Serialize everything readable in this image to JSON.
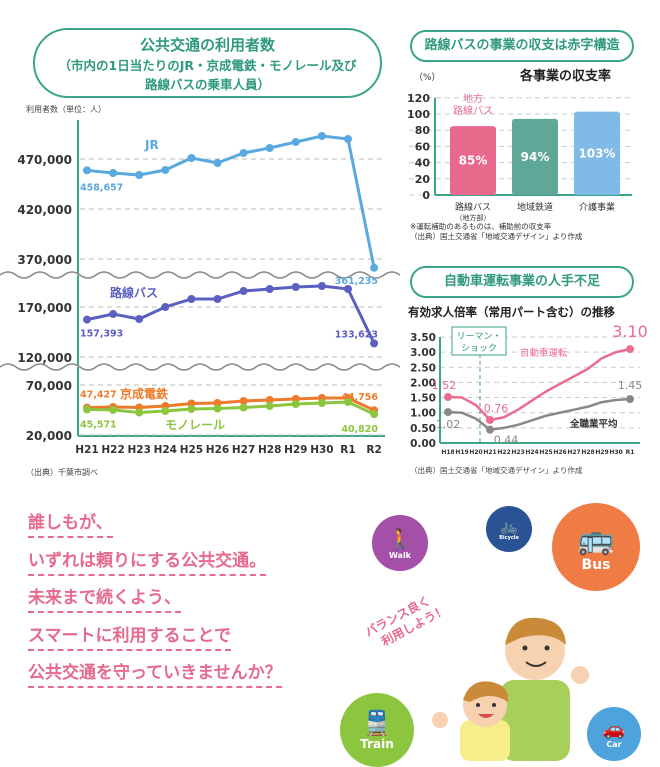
{
  "left_panel": {
    "title": "公共交通の利用者数",
    "subtitle1": "（市内の1日当たりのJR・京成電鉄・モノレール及び",
    "subtitle2": "路線バスの乗車人員）",
    "unit": "利用者数（単位：人）",
    "source": "（出典）千葉市調べ"
  },
  "bus_panel": {
    "heading": "路線バスの事業の収支は赤字構造",
    "source_note1": "※運転補助のあるものは、補助前の収支率",
    "source_note2": "（出典）国土交通省「地域交通デザイン」より作成"
  },
  "driver_panel": {
    "heading": "自動車運転事業の人手不足",
    "source": "（出典）国土交通省「地域交通デザイン」より作成",
    "lehman": "リーマン・ショック"
  },
  "chart_data": [
    {
      "type": "line",
      "title": "公共交通の利用者数",
      "ylabel": "利用者数（単位：人）",
      "categories": [
        "H21",
        "H22",
        "H23",
        "H24",
        "H25",
        "H26",
        "H27",
        "H28",
        "H29",
        "H30",
        "R1",
        "R2"
      ],
      "yticks": [
        "470,000",
        "420,000",
        "370,000",
        "170,000",
        "120,000",
        "70,000",
        "20,000"
      ],
      "series": [
        {
          "name": "JR",
          "color": "#5aa8e0",
          "values": [
            458657,
            456000,
            454000,
            459000,
            471000,
            466000,
            476000,
            481000,
            487000,
            493000,
            490000,
            361235
          ],
          "labels": [
            "458,657",
            "361,235"
          ]
        },
        {
          "name": "路線バス",
          "color": "#5a5fc0",
          "values": [
            157393,
            163000,
            158000,
            170000,
            178000,
            178000,
            186000,
            188000,
            190000,
            191000,
            188000,
            133623
          ],
          "labels": [
            "157,393",
            "133,623"
          ]
        },
        {
          "name": "京成電鉄",
          "color": "#ee7a2b",
          "values": [
            47427,
            48000,
            47500,
            49000,
            51500,
            52000,
            54000,
            55000,
            56000,
            57000,
            57000,
            44756
          ],
          "labels": [
            "47,427",
            "44,756"
          ]
        },
        {
          "name": "モノレール",
          "color": "#8cc63f",
          "values": [
            45571,
            45000,
            42500,
            44000,
            46000,
            46500,
            47500,
            49000,
            51000,
            52000,
            53000,
            40820
          ],
          "labels": [
            "45,571",
            "40,820"
          ]
        }
      ]
    },
    {
      "type": "bar",
      "title": "各事業の収支率",
      "ylabel": "（%）",
      "ylim": [
        0,
        120
      ],
      "yticks": [
        "0",
        "20",
        "40",
        "60",
        "80",
        "100",
        "120"
      ],
      "categories": [
        "路線バス",
        "地域鉄道",
        "介護事業"
      ],
      "category_sub": [
        "（地方部）",
        "",
        ""
      ],
      "values": [
        85,
        94,
        103
      ],
      "value_labels": [
        "85%",
        "94%",
        "103%"
      ],
      "colors": [
        "#e8698c",
        "#5fa897",
        "#7fbbe6"
      ],
      "annotation": "地方 路線バス"
    },
    {
      "type": "line",
      "title": "有効求人倍率（常用パート含む）の推移",
      "ylim": [
        0,
        3.5
      ],
      "yticks": [
        "0.00",
        "0.50",
        "1.00",
        "1.50",
        "2.00",
        "2.50",
        "3.00",
        "3.50"
      ],
      "categories": [
        "H18",
        "H19",
        "H20",
        "H21",
        "H22",
        "H23",
        "H24",
        "H25",
        "H26",
        "H27",
        "H28",
        "H29",
        "H30",
        "R1"
      ],
      "series": [
        {
          "name": "自動車運転",
          "color": "#ea6c8f",
          "values": [
            1.52,
            1.5,
            1.25,
            0.76,
            0.85,
            1.1,
            1.4,
            1.7,
            1.95,
            2.2,
            2.45,
            2.8,
            3.0,
            3.1
          ],
          "labels": [
            "1.52",
            "0.76",
            "3.10"
          ]
        },
        {
          "name": "全職業平均",
          "color": "#888888",
          "values": [
            1.02,
            1.0,
            0.8,
            0.44,
            0.5,
            0.6,
            0.75,
            0.9,
            1.0,
            1.1,
            1.2,
            1.35,
            1.42,
            1.45
          ],
          "labels": [
            "1.02",
            "0.44",
            "1.45"
          ]
        }
      ]
    }
  ],
  "message": [
    "誰しもが、",
    "いずれは頼りにする公共交通。",
    "未来まで続くよう、",
    "スマートに利用することで",
    "公共交通を守っていきませんか？"
  ],
  "bubble": [
    "バランス良く",
    "利用しよう！"
  ],
  "modes": {
    "walk": "Walk",
    "bicycle": "Bicycle",
    "bus": "Bus",
    "train": "Train",
    "car": "Car"
  }
}
